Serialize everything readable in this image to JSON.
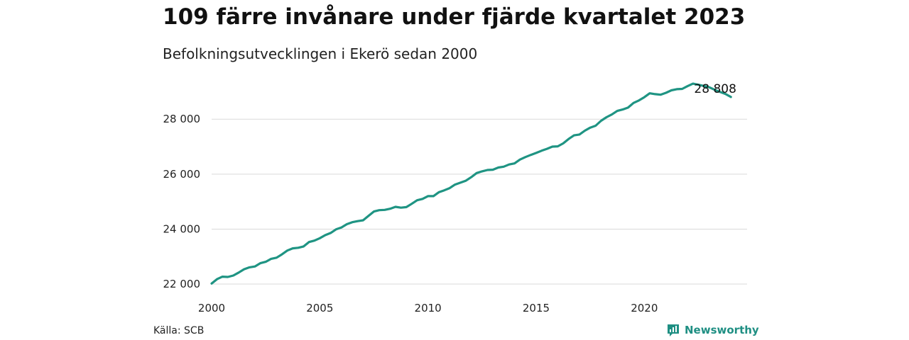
{
  "chart_data": {
    "type": "line",
    "title": "109 färre invånare under fjärde kvartalet 2023",
    "subtitle": "Befolkningsutvecklingen i Ekerö sedan 2000",
    "xlabel": "",
    "ylabel": "",
    "xlim": [
      2000,
      2024.75
    ],
    "ylim": [
      21950,
      29500
    ],
    "grid": "horizontal",
    "x_ticks": [
      {
        "value": 2000,
        "label": "2000"
      },
      {
        "value": 2005,
        "label": "2005"
      },
      {
        "value": 2010,
        "label": "2010"
      },
      {
        "value": 2015,
        "label": "2015"
      },
      {
        "value": 2020,
        "label": "2020"
      }
    ],
    "y_ticks": [
      {
        "value": 22000,
        "label": "22 000"
      },
      {
        "value": 24000,
        "label": "24 000"
      },
      {
        "value": 26000,
        "label": "26 000"
      },
      {
        "value": 28000,
        "label": "28 000"
      }
    ],
    "series": [
      {
        "color": "#1f9483",
        "points": [
          [
            "2000-Q1",
            22020
          ],
          [
            "2000-Q2",
            22180
          ],
          [
            "2000-Q3",
            22270
          ],
          [
            "2000-Q4",
            22260
          ],
          [
            "2001-Q1",
            22310
          ],
          [
            "2001-Q2",
            22420
          ],
          [
            "2001-Q3",
            22540
          ],
          [
            "2001-Q4",
            22610
          ],
          [
            "2002-Q1",
            22640
          ],
          [
            "2002-Q2",
            22760
          ],
          [
            "2002-Q3",
            22810
          ],
          [
            "2002-Q4",
            22920
          ],
          [
            "2003-Q1",
            22960
          ],
          [
            "2003-Q2",
            23080
          ],
          [
            "2003-Q3",
            23220
          ],
          [
            "2003-Q4",
            23300
          ],
          [
            "2004-Q1",
            23320
          ],
          [
            "2004-Q2",
            23370
          ],
          [
            "2004-Q3",
            23530
          ],
          [
            "2004-Q4",
            23580
          ],
          [
            "2005-Q1",
            23670
          ],
          [
            "2005-Q2",
            23780
          ],
          [
            "2005-Q3",
            23860
          ],
          [
            "2005-Q4",
            23990
          ],
          [
            "2006-Q1",
            24060
          ],
          [
            "2006-Q2",
            24180
          ],
          [
            "2006-Q3",
            24250
          ],
          [
            "2006-Q4",
            24290
          ],
          [
            "2007-Q1",
            24320
          ],
          [
            "2007-Q2",
            24480
          ],
          [
            "2007-Q3",
            24640
          ],
          [
            "2007-Q4",
            24690
          ],
          [
            "2008-Q1",
            24700
          ],
          [
            "2008-Q2",
            24740
          ],
          [
            "2008-Q3",
            24810
          ],
          [
            "2008-Q4",
            24780
          ],
          [
            "2009-Q1",
            24800
          ],
          [
            "2009-Q2",
            24920
          ],
          [
            "2009-Q3",
            25050
          ],
          [
            "2009-Q4",
            25100
          ],
          [
            "2010-Q1",
            25200
          ],
          [
            "2010-Q2",
            25200
          ],
          [
            "2010-Q3",
            25340
          ],
          [
            "2010-Q4",
            25410
          ],
          [
            "2011-Q1",
            25490
          ],
          [
            "2011-Q2",
            25620
          ],
          [
            "2011-Q3",
            25690
          ],
          [
            "2011-Q4",
            25760
          ],
          [
            "2012-Q1",
            25890
          ],
          [
            "2012-Q2",
            26040
          ],
          [
            "2012-Q3",
            26100
          ],
          [
            "2012-Q4",
            26150
          ],
          [
            "2013-Q1",
            26160
          ],
          [
            "2013-Q2",
            26240
          ],
          [
            "2013-Q3",
            26270
          ],
          [
            "2013-Q4",
            26350
          ],
          [
            "2014-Q1",
            26390
          ],
          [
            "2014-Q2",
            26530
          ],
          [
            "2014-Q3",
            26620
          ],
          [
            "2014-Q4",
            26700
          ],
          [
            "2015-Q1",
            26770
          ],
          [
            "2015-Q2",
            26850
          ],
          [
            "2015-Q3",
            26920
          ],
          [
            "2015-Q4",
            27000
          ],
          [
            "2016-Q1",
            27010
          ],
          [
            "2016-Q2",
            27120
          ],
          [
            "2016-Q3",
            27280
          ],
          [
            "2016-Q4",
            27410
          ],
          [
            "2017-Q1",
            27440
          ],
          [
            "2017-Q2",
            27580
          ],
          [
            "2017-Q3",
            27690
          ],
          [
            "2017-Q4",
            27760
          ],
          [
            "2018-Q1",
            27940
          ],
          [
            "2018-Q2",
            28070
          ],
          [
            "2018-Q3",
            28170
          ],
          [
            "2018-Q4",
            28300
          ],
          [
            "2019-Q1",
            28350
          ],
          [
            "2019-Q2",
            28420
          ],
          [
            "2019-Q3",
            28590
          ],
          [
            "2019-Q4",
            28680
          ],
          [
            "2020-Q1",
            28800
          ],
          [
            "2020-Q2",
            28940
          ],
          [
            "2020-Q3",
            28910
          ],
          [
            "2020-Q4",
            28890
          ],
          [
            "2021-Q1",
            28960
          ],
          [
            "2021-Q2",
            29050
          ],
          [
            "2021-Q3",
            29090
          ],
          [
            "2021-Q4",
            29100
          ],
          [
            "2022-Q1",
            29200
          ],
          [
            "2022-Q2",
            29290
          ],
          [
            "2022-Q3",
            29250
          ],
          [
            "2022-Q4",
            29210
          ],
          [
            "2023-Q1",
            29160
          ],
          [
            "2023-Q2",
            29070
          ],
          [
            "2023-Q3",
            28990
          ],
          [
            "2023-Q4",
            28917
          ],
          [
            "2024-Q1",
            28808
          ]
        ]
      }
    ],
    "end_label": "28 808"
  },
  "footer": {
    "source": "Källa: SCB",
    "brand": "Newsworthy"
  },
  "colors": {
    "line": "#1f9483",
    "grid": "#d9d9d9",
    "brand": "#1f8f83"
  }
}
